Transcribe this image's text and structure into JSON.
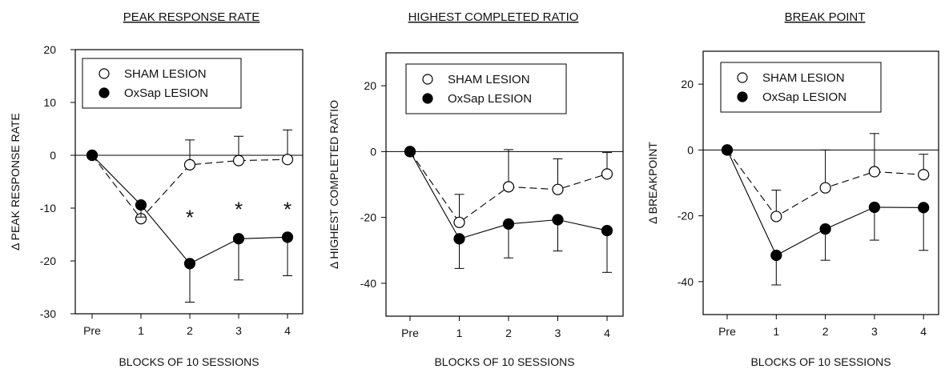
{
  "colors": {
    "sham": "#ffffff",
    "oxsap": "#000000",
    "axis": "#000000"
  },
  "chart_data": [
    {
      "type": "line",
      "title": "PEAK RESPONSE RATE",
      "ylabel": "Δ PEAK RESPONSE RATE",
      "xlabel": "BLOCKS OF 10 SESSIONS",
      "categories": [
        "Pre",
        "1",
        "2",
        "3",
        "4"
      ],
      "ylim": [
        -30,
        20
      ],
      "yticks": [
        "20",
        "10",
        "0",
        "-10",
        "-20",
        "-30"
      ],
      "ytick_values": [
        20,
        10,
        0,
        -10,
        -20,
        -30
      ],
      "legend": {
        "position": "top-left",
        "entries": [
          "SHAM LESION",
          "OxSap LESION"
        ]
      },
      "series": [
        {
          "name": "SHAM LESION",
          "marker": "open-circle",
          "line": "dashed",
          "values": [
            0,
            -12,
            -1.8,
            -1,
            -0.8
          ],
          "error": [
            0,
            2.5,
            4.7,
            4.6,
            5.6
          ]
        },
        {
          "name": "OxSap LESION",
          "marker": "filled-circle",
          "line": "solid",
          "values": [
            0,
            -9.4,
            -20.5,
            -15.8,
            -15.5
          ],
          "error": [
            0,
            2.3,
            7.3,
            7.8,
            7.3
          ]
        }
      ],
      "annotations": [
        {
          "x": "2",
          "y": -11,
          "text": "*"
        },
        {
          "x": "3",
          "y": -9.5,
          "text": "*"
        },
        {
          "x": "4",
          "y": -9.5,
          "text": "*"
        }
      ]
    },
    {
      "type": "line",
      "title": "HIGHEST COMPLETED RATIO",
      "ylabel": "Δ HIGHEST COMPLETED RATIO",
      "xlabel": "BLOCKS OF 10 SESSIONS",
      "categories": [
        "Pre",
        "1",
        "2",
        "3",
        "4"
      ],
      "ylim": [
        -50,
        30
      ],
      "yticks": [
        "20",
        "0",
        "-20",
        "-40"
      ],
      "ytick_values": [
        20,
        0,
        -20,
        -40
      ],
      "legend": {
        "position": "top-left",
        "entries": [
          "SHAM LESION",
          "OxSap LESION"
        ]
      },
      "series": [
        {
          "name": "SHAM LESION",
          "marker": "open-circle",
          "line": "dashed",
          "values": [
            0,
            -21.5,
            -10.7,
            -11.5,
            -6.8
          ],
          "error": [
            0,
            8.5,
            11.3,
            9.3,
            6.5
          ]
        },
        {
          "name": "OxSap LESION",
          "marker": "filled-circle",
          "line": "solid",
          "values": [
            0,
            -26.5,
            -22,
            -20.7,
            -24
          ],
          "error": [
            0,
            9,
            10.3,
            9.5,
            12.7
          ]
        }
      ],
      "annotations": []
    },
    {
      "type": "line",
      "title": "BREAK POINT",
      "ylabel": "Δ BREAKPOINT",
      "xlabel": "BLOCKS OF 10 SESSIONS",
      "categories": [
        "Pre",
        "1",
        "2",
        "3",
        "4"
      ],
      "ylim": [
        -50,
        30
      ],
      "yticks": [
        "20",
        "0",
        "-20",
        "-40"
      ],
      "ytick_values": [
        20,
        0,
        -20,
        -40
      ],
      "legend": {
        "position": "top-left",
        "entries": [
          "SHAM LESION",
          "OxSap LESION"
        ]
      },
      "series": [
        {
          "name": "SHAM LESION",
          "marker": "open-circle",
          "line": "dashed",
          "values": [
            0,
            -20.2,
            -11.5,
            -6.6,
            -7.5
          ],
          "error": [
            0,
            8,
            11.5,
            11.6,
            6.2
          ]
        },
        {
          "name": "OxSap LESION",
          "marker": "filled-circle",
          "line": "solid",
          "values": [
            0,
            -32,
            -24,
            -17.4,
            -17.5
          ],
          "error": [
            0,
            9,
            9.5,
            10,
            13
          ]
        }
      ],
      "annotations": []
    }
  ]
}
